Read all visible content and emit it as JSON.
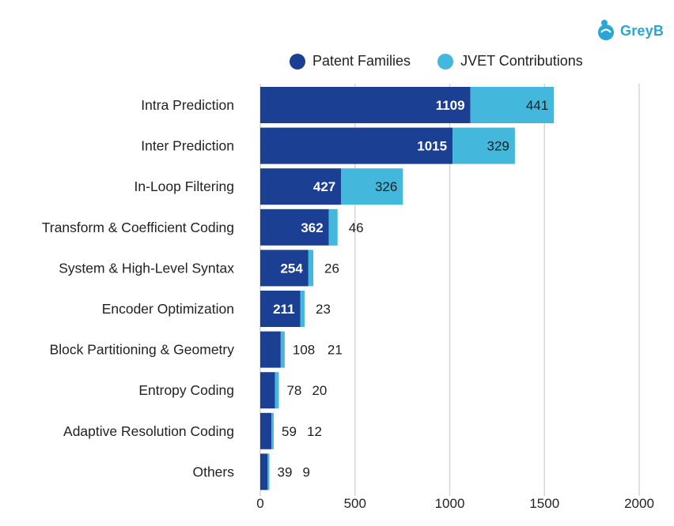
{
  "brand": {
    "name": "GreyB",
    "color": "#2aa6d6"
  },
  "colors": {
    "patent": "#1b3f92",
    "jvet": "#43b8dc",
    "grid": "#d6d6d6"
  },
  "chart_data": {
    "type": "bar",
    "orientation": "horizontal",
    "stacked": true,
    "title": "",
    "xlabel": "",
    "ylabel": "",
    "xlim": [
      0,
      2000
    ],
    "xticks": [
      0,
      500,
      1000,
      1500,
      2000
    ],
    "grid": true,
    "legend_position": "top",
    "categories": [
      "Intra Prediction",
      "Inter Prediction",
      "In-Loop Filtering",
      "Transform & Coefficient Coding",
      "System & High-Level Syntax",
      "Encoder Optimization",
      "Block Partitioning & Geometry",
      "Entropy Coding",
      "Adaptive Resolution Coding",
      "Others"
    ],
    "series": [
      {
        "name": "Patent Families",
        "values": [
          1109,
          1015,
          427,
          362,
          254,
          211,
          108,
          78,
          59,
          39
        ]
      },
      {
        "name": "JVET Contributions",
        "values": [
          441,
          329,
          326,
          46,
          26,
          23,
          21,
          20,
          12,
          9
        ]
      }
    ]
  }
}
